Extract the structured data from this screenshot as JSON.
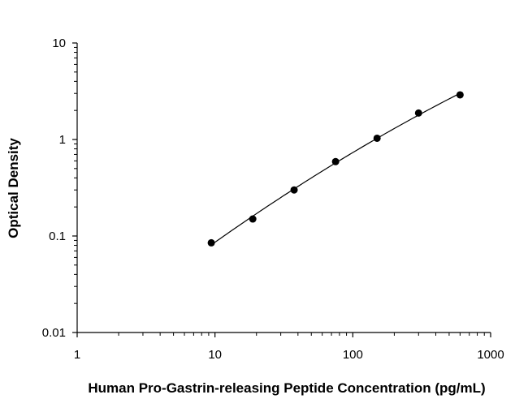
{
  "chart_data": {
    "type": "scatter",
    "title": "",
    "xlabel": "Human Pro-Gastrin-releasing Peptide Concentration (pg/mL)",
    "ylabel": "Optical Density",
    "x_scale": "log",
    "y_scale": "log",
    "xlim": [
      1,
      1000
    ],
    "ylim": [
      0.01,
      10
    ],
    "x_ticks": [
      {
        "value": 1,
        "label": "1"
      },
      {
        "value": 10,
        "label": "10"
      },
      {
        "value": 100,
        "label": "100"
      },
      {
        "value": 1000,
        "label": "1000"
      }
    ],
    "y_ticks": [
      {
        "value": 0.01,
        "label": "0.01"
      },
      {
        "value": 0.1,
        "label": "0.1"
      },
      {
        "value": 1,
        "label": "1"
      },
      {
        "value": 10,
        "label": "10"
      }
    ],
    "grid": false,
    "legend": "none",
    "series": [
      {
        "x": [
          9.4,
          18.8,
          37.5,
          75,
          150,
          300,
          600
        ],
        "y": [
          0.085,
          0.15,
          0.3,
          0.59,
          1.03,
          1.88,
          2.9
        ],
        "marker": "circle",
        "color": "#000000",
        "fit_curve": true
      }
    ]
  }
}
